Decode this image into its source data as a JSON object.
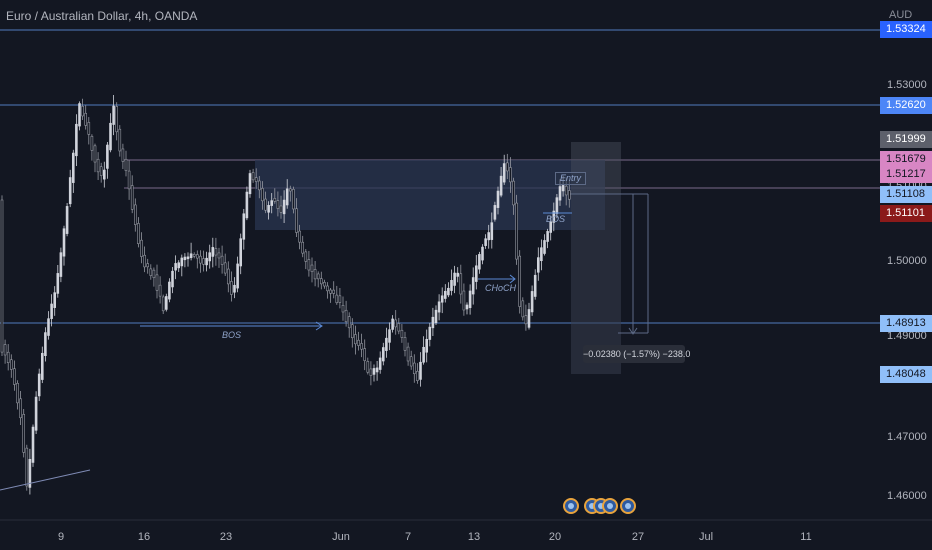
{
  "header": {
    "title": "Euro / Australian Dollar, 4h, OANDA",
    "currency": "AUD"
  },
  "price_axis": {
    "ticks": [
      "1.53000",
      "1.52000",
      "1.51000",
      "1.50000",
      "1.49000",
      "1.48000",
      "1.47000",
      "1.46000"
    ],
    "badges": [
      {
        "label": "1.53324",
        "bg": "#2962ff",
        "fg": "#ffffff"
      },
      {
        "label": "1.52620",
        "bg": "#4d86f7",
        "fg": "#ffffff"
      },
      {
        "label": "1.51999",
        "bg": "#5d606b",
        "fg": "#ffffff"
      },
      {
        "label": "1.51679",
        "bg": "#d886c4",
        "fg": "#131722"
      },
      {
        "label": "1.51217",
        "bg": "#d886c4",
        "fg": "#131722"
      },
      {
        "label": "1.51108",
        "bg": "#90bff9",
        "fg": "#131722"
      },
      {
        "label": "1.51101",
        "bg": "#8b1a1a",
        "fg": "#ffffff"
      },
      {
        "label": "1.48913",
        "bg": "#90bff9",
        "fg": "#131722"
      },
      {
        "label": "1.48048",
        "bg": "#90bff9",
        "fg": "#131722"
      }
    ]
  },
  "time_axis": {
    "labels": [
      "9",
      "16",
      "23",
      "Jun",
      "7",
      "13",
      "20",
      "27",
      "Jul",
      "11"
    ]
  },
  "annotations": {
    "bos_1": "BOS",
    "choch": "CHoCH",
    "bos_2": "BOS",
    "entry": "Entry"
  },
  "measurement": {
    "label": "−0.02380 (−1.57%) −238.0"
  },
  "colors": {
    "background": "#131722",
    "up_candle": "#d1d4dc",
    "down_candle": "#9598a1",
    "level_line": "#3d5a8a",
    "zone": "#2a3550"
  },
  "event_icons": [
    "event-icon",
    "event-icon",
    "event-icon",
    "event-icon",
    "event-icon"
  ]
}
